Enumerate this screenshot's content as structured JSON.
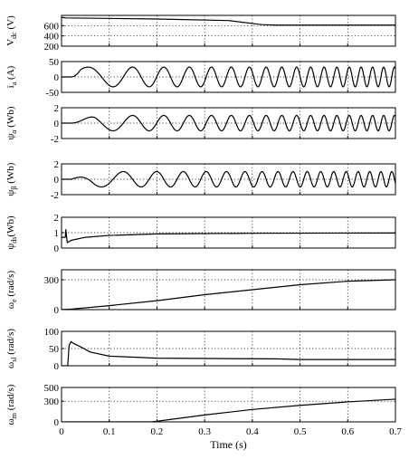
{
  "chart_data": {
    "type": "line",
    "xlabel": "Time (s)",
    "xlim": [
      0,
      0.7
    ],
    "xticks": [
      "0",
      "0.1",
      "0.2",
      "0.3",
      "0.4",
      "0.5",
      "0.6",
      "0.7"
    ],
    "xtick_values": [
      0,
      0.1,
      0.2,
      0.3,
      0.4,
      0.5,
      0.6,
      0.7
    ],
    "grid": true,
    "panels": [
      {
        "id": "vdc",
        "ylabel": {
          "main": "V",
          "sub": "dc",
          "unit": " (V)"
        },
        "ylim": [
          200,
          800
        ],
        "yticks": [
          "200",
          "400",
          "600"
        ],
        "ytick_values": [
          200,
          400,
          600
        ],
        "series": [
          {
            "kind": "piecewise",
            "points": [
              [
                0,
                760
              ],
              [
                0.01,
                750
              ],
              [
                0.2,
                730
              ],
              [
                0.35,
                700
              ],
              [
                0.42,
                620
              ],
              [
                0.45,
                610
              ],
              [
                0.7,
                610
              ]
            ]
          }
        ]
      },
      {
        "id": "ia",
        "ylabel": {
          "main": "i",
          "sub": "a",
          "unit": " (A)"
        },
        "ylim": [
          -50,
          50
        ],
        "yticks": [
          "-50",
          "0",
          "50"
        ],
        "ytick_values": [
          -50,
          0,
          50
        ],
        "series": [
          {
            "kind": "sinusoid",
            "start_level": 0,
            "peak": 32,
            "amp_rise": 0.02,
            "freq_start": 6,
            "freq_end": 45,
            "ramp_start": 0.02,
            "ramp_end": 0.7
          }
        ]
      },
      {
        "id": "psi-alpha",
        "ylabel": {
          "main": "ψ",
          "sub": "α",
          "unit": " (Wb)"
        },
        "ylim": [
          -2,
          2
        ],
        "yticks": [
          "-2",
          "0",
          "2"
        ],
        "ytick_values": [
          -2,
          0,
          2
        ],
        "series": [
          {
            "kind": "sinusoid",
            "start_level": 0,
            "peak": 1.0,
            "amp_rise": 0.05,
            "freq_start": 6,
            "freq_end": 45,
            "ramp_start": 0.02,
            "ramp_end": 0.7
          }
        ]
      },
      {
        "id": "psi-beta",
        "ylabel": {
          "main": "ψ",
          "sub": "β",
          "unit": " (Wb)"
        },
        "ylim": [
          -2,
          2
        ],
        "yticks": [
          "-2",
          "0",
          "2"
        ],
        "ytick_values": [
          -2,
          0,
          2
        ],
        "series": [
          {
            "kind": "sinusoid",
            "phase": 1.5708,
            "start_level": 0,
            "peak": 1.0,
            "amp_rise": 0.05,
            "freq_start": 6,
            "freq_end": 45,
            "ramp_start": 0.02,
            "ramp_end": 0.7
          }
        ]
      },
      {
        "id": "psi-ds",
        "ylabel": {
          "main": "ψ",
          "sub": "ds",
          "unit": "(Wb)"
        },
        "ylim": [
          0,
          2
        ],
        "yticks": [
          "0",
          "1",
          "2"
        ],
        "ytick_values": [
          0,
          1,
          2
        ],
        "series": [
          {
            "kind": "piecewise",
            "points": [
              [
                0,
                0.7
              ],
              [
                0.008,
                0.7
              ],
              [
                0.009,
                1.2
              ],
              [
                0.012,
                0.35
              ],
              [
                0.02,
                0.5
              ],
              [
                0.05,
                0.7
              ],
              [
                0.1,
                0.82
              ],
              [
                0.2,
                0.92
              ],
              [
                0.4,
                0.96
              ],
              [
                0.7,
                0.98
              ]
            ]
          }
        ]
      },
      {
        "id": "omega-e",
        "ylabel": {
          "main": "ω",
          "sub": "e",
          "unit": " (rad/s)"
        },
        "ylim": [
          0,
          400
        ],
        "yticks": [
          "0",
          "300"
        ],
        "ytick_values": [
          0,
          300
        ],
        "series": [
          {
            "kind": "piecewise",
            "points": [
              [
                0,
                0
              ],
              [
                0.02,
                5
              ],
              [
                0.1,
                40
              ],
              [
                0.2,
                90
              ],
              [
                0.3,
                150
              ],
              [
                0.4,
                200
              ],
              [
                0.5,
                250
              ],
              [
                0.6,
                285
              ],
              [
                0.7,
                300
              ]
            ]
          }
        ]
      },
      {
        "id": "omega-sl",
        "ylabel": {
          "main": "ω",
          "sub": "sl",
          "unit": " (rad/s)"
        },
        "ylim": [
          0,
          100
        ],
        "yticks": [
          "0",
          "50",
          "100"
        ],
        "ytick_values": [
          0,
          50,
          100
        ],
        "series": [
          {
            "kind": "piecewise",
            "points": [
              [
                0,
                0
              ],
              [
                0.013,
                0
              ],
              [
                0.016,
                60
              ],
              [
                0.02,
                70
              ],
              [
                0.025,
                65
              ],
              [
                0.04,
                55
              ],
              [
                0.06,
                40
              ],
              [
                0.1,
                28
              ],
              [
                0.2,
                22
              ],
              [
                0.45,
                20
              ],
              [
                0.5,
                18
              ],
              [
                0.7,
                18
              ]
            ]
          }
        ]
      },
      {
        "id": "omega-m",
        "ylabel": {
          "main": "ω",
          "sub": "m",
          "unit": " (rad/s)"
        },
        "ylim": [
          0,
          500
        ],
        "yticks": [
          "0",
          "300",
          "500"
        ],
        "ytick_values": [
          0,
          300,
          500
        ],
        "series": [
          {
            "kind": "piecewise",
            "points": [
              [
                0,
                0
              ],
              [
                0.19,
                0
              ],
              [
                0.3,
                100
              ],
              [
                0.4,
                180
              ],
              [
                0.5,
                240
              ],
              [
                0.6,
                290
              ],
              [
                0.7,
                330
              ]
            ]
          }
        ]
      }
    ]
  }
}
